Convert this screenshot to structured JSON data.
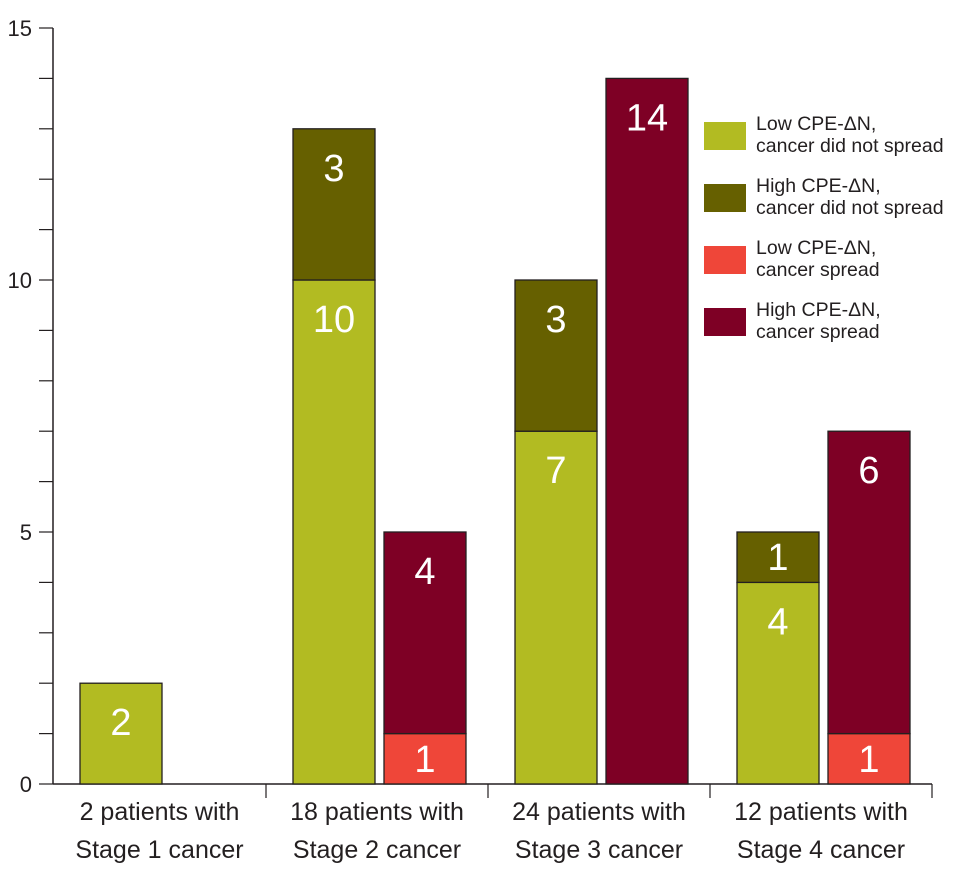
{
  "chart_data": {
    "type": "bar",
    "stacked": true,
    "title": "",
    "xlabel": "",
    "ylabel": "",
    "ylim": [
      0,
      15
    ],
    "y_ticks": [
      0,
      5,
      10,
      15
    ],
    "y_minor_step": 1,
    "grid": false,
    "legend_position": "top-right",
    "categories": [
      [
        "2 patients with",
        "Stage 1 cancer"
      ],
      [
        "18 patients with",
        "Stage 2 cancer"
      ],
      [
        "24 patients with",
        "Stage 3 cancer"
      ],
      [
        "12 patients with",
        "Stage 4 cancer"
      ]
    ],
    "series": [
      {
        "name": [
          "Low CPE-ΔN,",
          "cancer did not spread"
        ],
        "color": "#b2bb22"
      },
      {
        "name": [
          "High CPE-ΔN,",
          "cancer did not spread"
        ],
        "color": "#666000"
      },
      {
        "name": [
          "Low CPE-ΔN,",
          "cancer spread"
        ],
        "color": "#ef4639"
      },
      {
        "name": [
          "High CPE-ΔN,",
          "cancer spread"
        ],
        "color": "#7e0025"
      }
    ],
    "bars": [
      {
        "category": 0,
        "group": "did not spread",
        "segments": [
          {
            "series": 0,
            "value": 2
          }
        ]
      },
      {
        "category": 1,
        "group": "did not spread",
        "segments": [
          {
            "series": 0,
            "value": 10
          },
          {
            "series": 1,
            "value": 3
          }
        ]
      },
      {
        "category": 1,
        "group": "spread",
        "segments": [
          {
            "series": 2,
            "value": 1
          },
          {
            "series": 3,
            "value": 4
          }
        ]
      },
      {
        "category": 2,
        "group": "did not spread",
        "segments": [
          {
            "series": 0,
            "value": 7
          },
          {
            "series": 1,
            "value": 3
          }
        ]
      },
      {
        "category": 2,
        "group": "spread",
        "segments": [
          {
            "series": 3,
            "value": 14
          }
        ]
      },
      {
        "category": 3,
        "group": "did not spread",
        "segments": [
          {
            "series": 0,
            "value": 4
          },
          {
            "series": 1,
            "value": 1
          }
        ]
      },
      {
        "category": 3,
        "group": "spread",
        "segments": [
          {
            "series": 2,
            "value": 1
          },
          {
            "series": 3,
            "value": 6
          }
        ]
      }
    ]
  }
}
